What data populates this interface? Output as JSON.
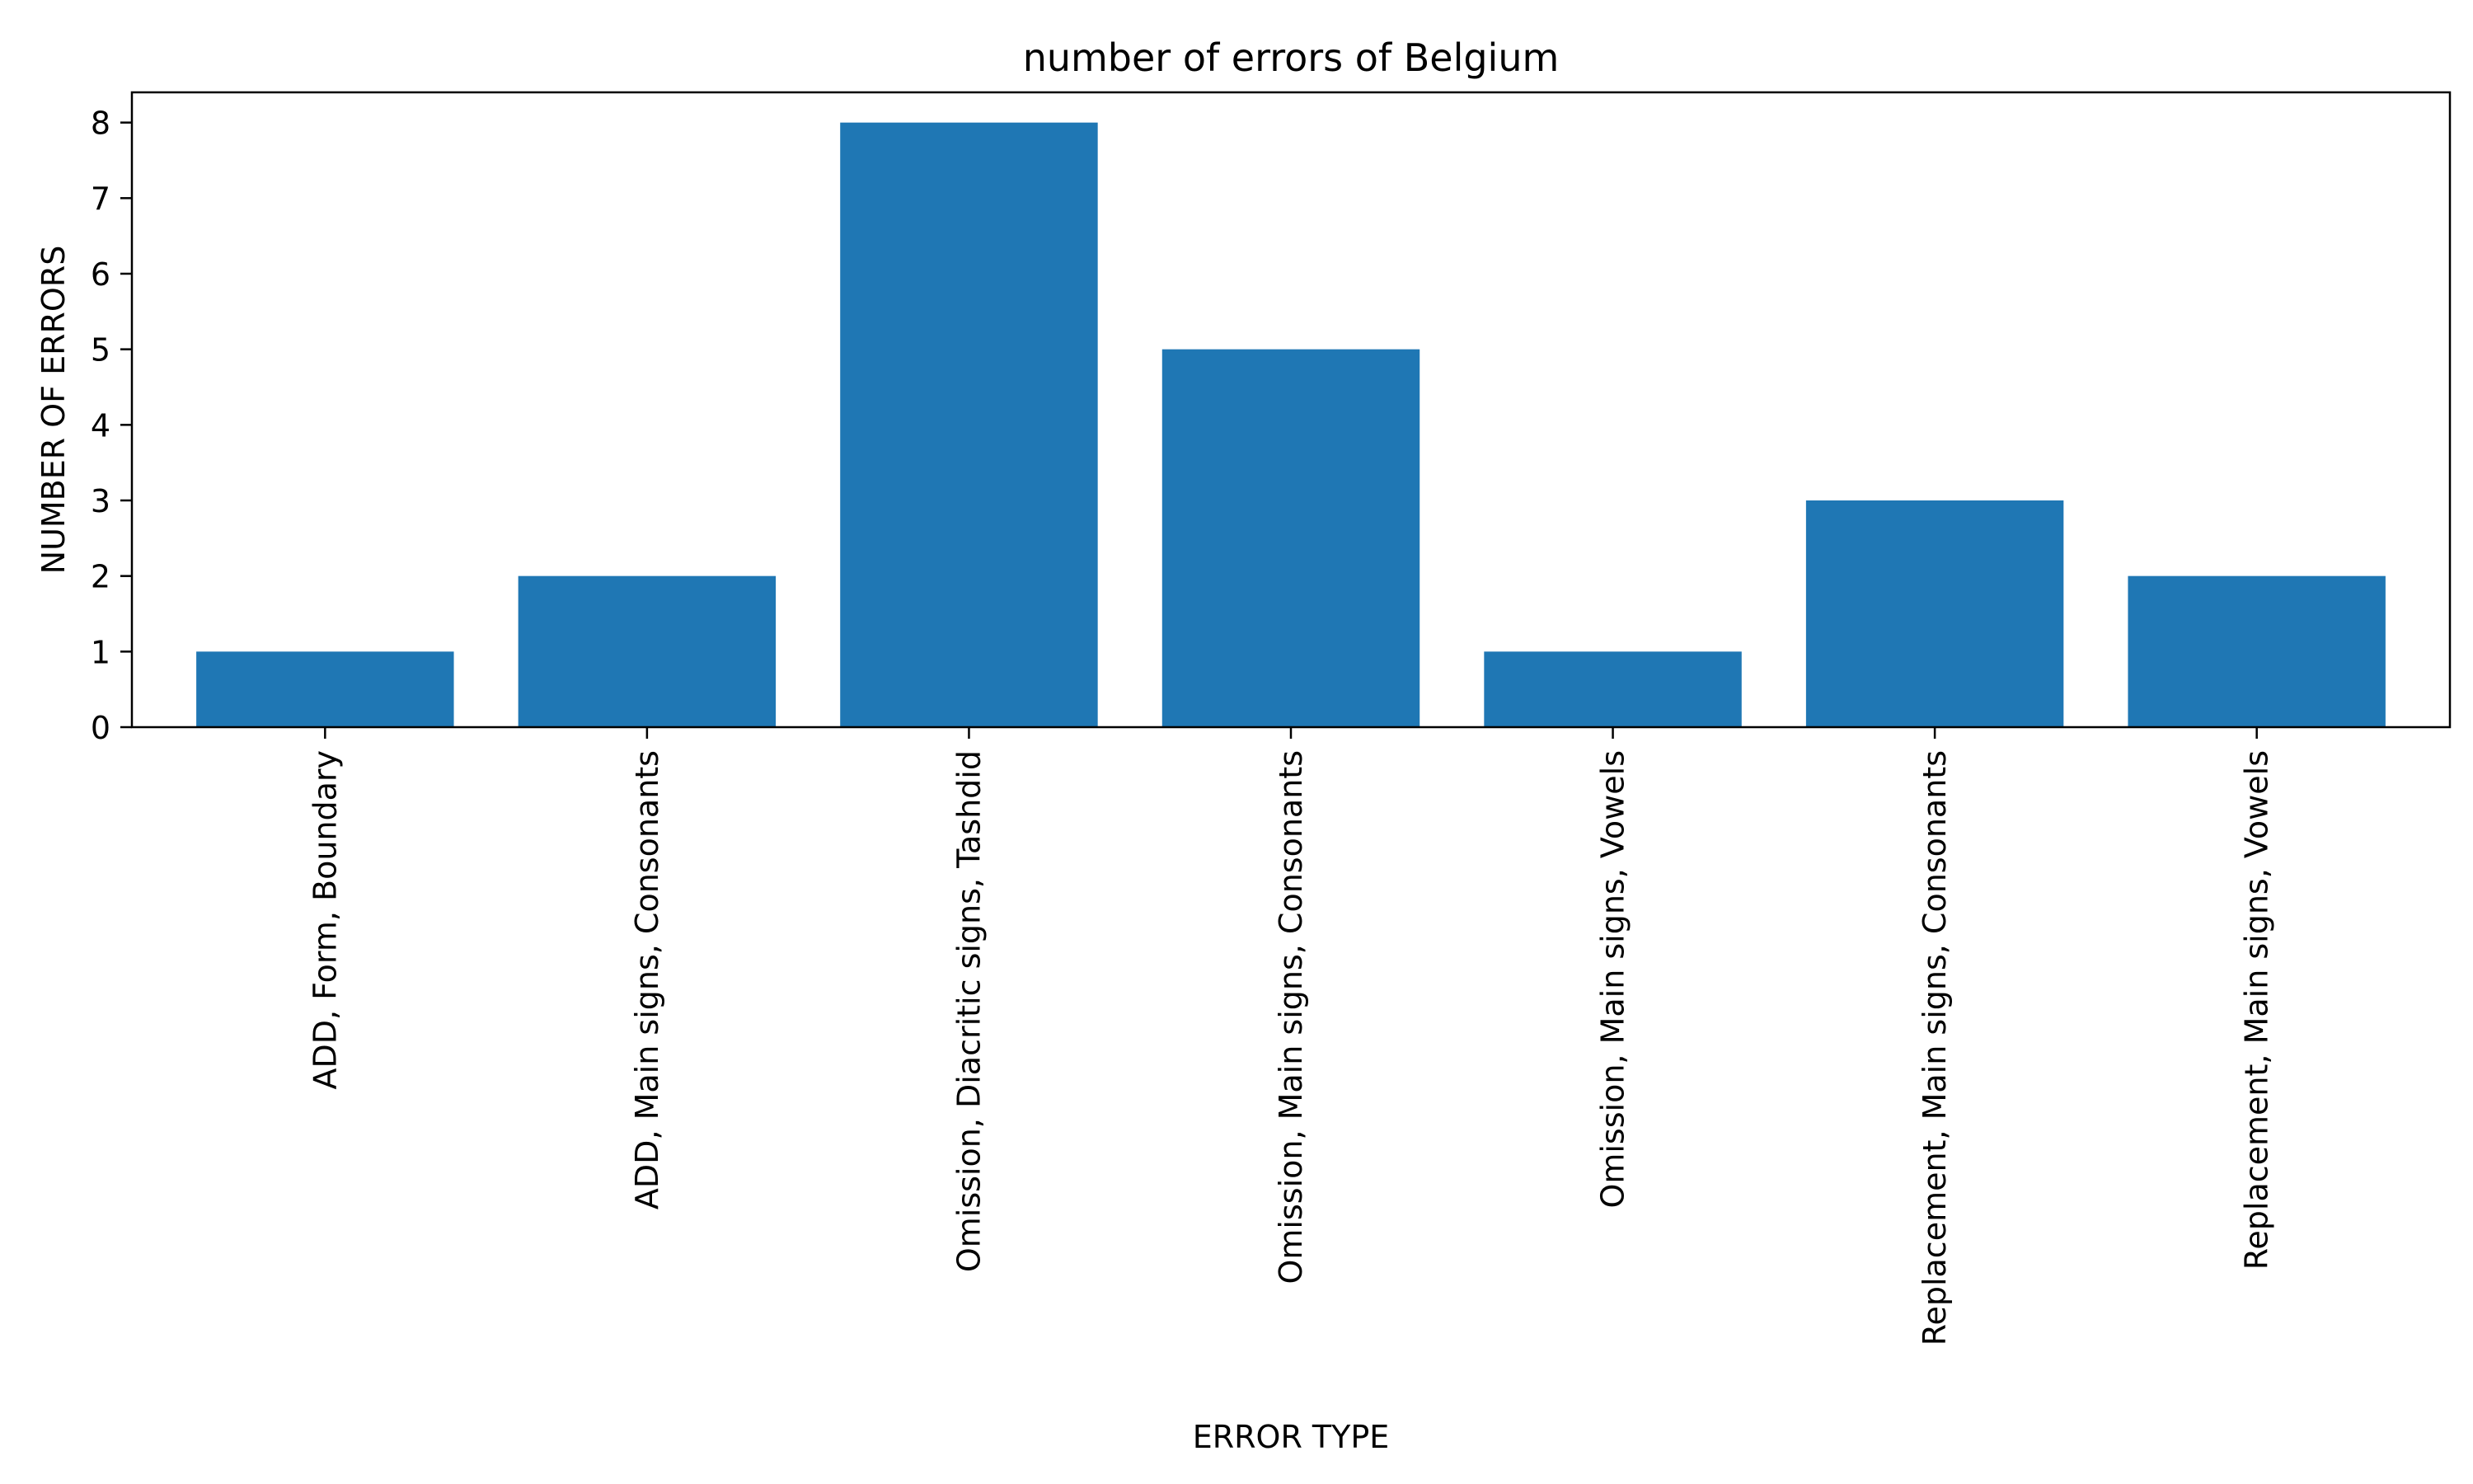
{
  "chart_data": {
    "type": "bar",
    "title": "number of errors of Belgium",
    "xlabel": "ERROR TYPE",
    "ylabel": "NUMBER OF ERRORS",
    "categories": [
      "ADD, Form, Boundary",
      "ADD, Main signs, Consonants",
      "Omission, Diacritic signs, Tashdid",
      "Omission, Main signs, Consonants",
      "Omission, Main signs, Vowels",
      "Replacement, Main signs, Consonants",
      "Replacement, Main signs, Vowels"
    ],
    "values": [
      1,
      2,
      8,
      5,
      1,
      3,
      2
    ],
    "ylim": [
      0,
      8.4
    ],
    "yticks": [
      0,
      1,
      2,
      3,
      4,
      5,
      6,
      7,
      8
    ],
    "bar_color": "#1f77b4",
    "grid": false,
    "legend": "none"
  }
}
